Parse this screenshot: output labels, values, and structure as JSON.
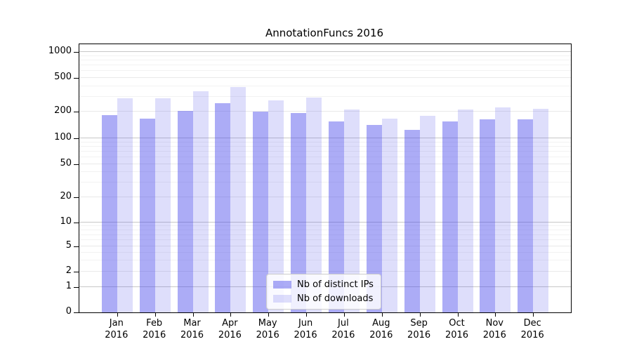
{
  "title": "AnnotationFuncs 2016",
  "chart_data": {
    "type": "bar",
    "title": "AnnotationFuncs 2016",
    "categories": [
      "Jan 2016",
      "Feb 2016",
      "Mar 2016",
      "Apr 2016",
      "May 2016",
      "Jun 2016",
      "Jul 2016",
      "Aug 2016",
      "Sep 2016",
      "Oct 2016",
      "Nov 2016",
      "Dec 2016"
    ],
    "series": [
      {
        "name": "Nb of distinct IPs",
        "color": "rgba(70,70,235,0.45)",
        "values": [
          182,
          167,
          205,
          250,
          200,
          193,
          154,
          142,
          125,
          154,
          165,
          165
        ]
      },
      {
        "name": "Nb of downloads",
        "color": "rgba(70,70,235,0.18)",
        "values": [
          290,
          285,
          345,
          390,
          272,
          295,
          212,
          166,
          180,
          213,
          224,
          218
        ]
      }
    ],
    "yscale": "symlog",
    "yticks": [
      0,
      1,
      2,
      5,
      10,
      20,
      50,
      100,
      200,
      500,
      1000
    ],
    "yminor_gridlines": [
      3,
      4,
      6,
      7,
      8,
      9,
      30,
      40,
      60,
      70,
      80,
      90,
      300,
      400,
      600,
      700,
      800,
      900
    ],
    "ylim": [
      0,
      1230
    ],
    "grid": true,
    "legend_position": "lower-center",
    "colors": {
      "axis": "#000000",
      "major_power_gridline": "#c8c8c8",
      "major_gridline": "#e9e9e9",
      "minor_gridline": "#f2f2f2"
    }
  }
}
